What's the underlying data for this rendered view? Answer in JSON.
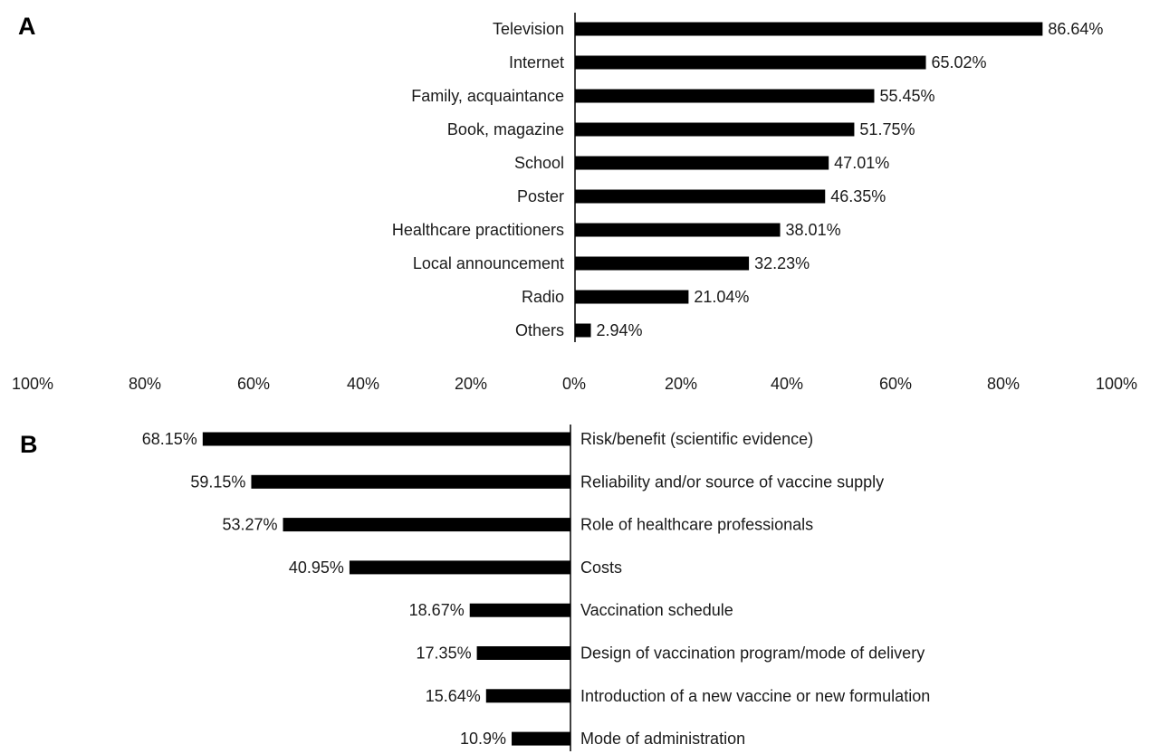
{
  "colors": {
    "bar": "#000000",
    "axis": "#000000",
    "text": "#1a1a1a"
  },
  "shared_axis": {
    "ticks": [
      "100%",
      "80%",
      "60%",
      "40%",
      "20%",
      "0%",
      "20%",
      "40%",
      "60%",
      "80%",
      "100%"
    ]
  },
  "chart_data": [
    {
      "panel": "A",
      "type": "bar",
      "orientation": "horizontal",
      "direction": "right",
      "categories": [
        "Television",
        "Internet",
        "Family, acquaintance",
        "Book, magazine",
        "School",
        "Poster",
        "Healthcare practitioners",
        "Local announcement",
        "Radio",
        "Others"
      ],
      "values": [
        86.64,
        65.02,
        55.45,
        51.75,
        47.01,
        46.35,
        38.01,
        32.23,
        21.04,
        2.94
      ],
      "value_labels": [
        "86.64%",
        "65.02%",
        "55.45%",
        "51.75%",
        "47.01%",
        "46.35%",
        "38.01%",
        "32.23%",
        "21.04%",
        "2.94%"
      ],
      "xlim": [
        0,
        100
      ],
      "grid": false
    },
    {
      "panel": "B",
      "type": "bar",
      "orientation": "horizontal",
      "direction": "left",
      "categories": [
        "Risk/benefit (scientific evidence)",
        "Reliability and/or source of vaccine supply",
        "Role of healthcare professionals",
        "Costs",
        "Vaccination schedule",
        "Design of vaccination program/mode of delivery",
        "Introduction of a new vaccine or new formulation",
        "Mode of administration"
      ],
      "values": [
        68.15,
        59.15,
        53.27,
        40.95,
        18.67,
        17.35,
        15.64,
        10.9
      ],
      "value_labels": [
        "68.15%",
        "59.15%",
        "53.27%",
        "40.95%",
        "18.67%",
        "17.35%",
        "15.64%",
        "10.9%"
      ],
      "xlim": [
        0,
        100
      ],
      "grid": false
    }
  ]
}
